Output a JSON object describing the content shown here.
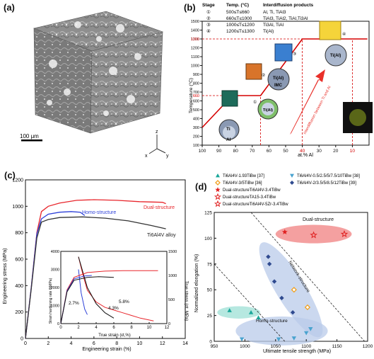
{
  "panel_a": {
    "label": "(a)",
    "scale_bar_text": "100 μm",
    "axis_letters": [
      "z",
      "x",
      "y"
    ]
  },
  "panel_b": {
    "label": "(b)",
    "table": {
      "headers": [
        "Stage",
        "Temp. (°C)",
        "Interdiffusion products"
      ],
      "rows": [
        {
          "stage": "①",
          "temp": "500≤T≤660",
          "products": "Al, Ti, TiAl3"
        },
        {
          "stage": "②",
          "temp": "660≤T≤1000",
          "products": "TiAl3, TiAl2, TiAl,Ti3Al"
        },
        {
          "stage": "③",
          "temp": "1000≤T≤1200",
          "products": "Ti3Al, TiAl"
        },
        {
          "stage": "④",
          "temp": "1200≤T≤1300",
          "products": "Ti(Al)"
        }
      ]
    },
    "annotations": {
      "ti": "Ti",
      "al": "Al",
      "ti_al": "Ti(Al)",
      "imc": "IMC",
      "arrow_text": "Interdiffusion between Ti and Al",
      "stage_marks": [
        "①",
        "②",
        "③",
        "④"
      ]
    },
    "highlight_color": "#d50000",
    "chart_data": {
      "type": "line",
      "xlabel": "at.% Al",
      "ylabel": "Temperature (°C)",
      "xlim": [
        100,
        0
      ],
      "ylim": [
        100,
        1500
      ],
      "x_ticks": [
        100,
        90,
        80,
        70,
        60,
        50,
        40,
        30,
        20,
        10
      ],
      "y_ticks": [
        100,
        200,
        300,
        400,
        500,
        600,
        700,
        800,
        900,
        1000,
        1100,
        1200,
        1300,
        1400,
        1500
      ],
      "highlight_ticks": {
        "x": [
          40,
          10
        ],
        "y": [
          660,
          1300
        ]
      },
      "series": [
        {
          "x": [
            100,
            82,
            65,
            40,
            10,
            1
          ],
          "y": [
            300,
            660,
            660,
            1300,
            1300,
            1300
          ]
        }
      ],
      "dashed_guides": [
        {
          "x": [
            100,
            65
          ],
          "y": [
            660,
            660
          ]
        },
        {
          "x": [
            100,
            10
          ],
          "y": [
            1300,
            1300
          ]
        },
        {
          "x": [
            65,
            65
          ],
          "y": [
            100,
            660
          ]
        },
        {
          "x": [
            40,
            40
          ],
          "y": [
            100,
            1300
          ]
        },
        {
          "x": [
            10,
            10
          ],
          "y": [
            100,
            1300
          ]
        }
      ]
    }
  },
  "panel_c": {
    "label": "(c)",
    "curve_labels": {
      "dual": "Dual-structure",
      "homo": "Homo-structure",
      "alloy": "Ti6Al4V alloy"
    },
    "chart_data": {
      "type": "line",
      "xlabel": "Engineering strain (%)",
      "ylabel": "Engineering stress (MPa)",
      "xlim": [
        0,
        14
      ],
      "ylim": [
        0,
        1200
      ],
      "x_ticks": [
        0,
        2,
        4,
        6,
        8,
        10,
        12,
        14
      ],
      "y_ticks": [
        0,
        200,
        400,
        600,
        800,
        1000,
        1200
      ],
      "series": [
        {
          "color": "#e8262c",
          "x": [
            0,
            0.5,
            1.0,
            1.4,
            2.0,
            3.0,
            4.5,
            6.0,
            8.0,
            10.0,
            12.0,
            12.3
          ],
          "y": [
            0,
            380,
            800,
            960,
            1000,
            1025,
            1045,
            1050,
            1045,
            1035,
            1030,
            1020
          ]
        },
        {
          "color": "#2c3fd8",
          "x": [
            0,
            0.5,
            1.0,
            1.4,
            2.0,
            3.0,
            4.0,
            4.8,
            5.2
          ],
          "y": [
            0,
            380,
            790,
            905,
            940,
            955,
            960,
            955,
            930
          ]
        },
        {
          "color": "#333333",
          "x": [
            0,
            0.5,
            1.0,
            1.4,
            2.0,
            3.0,
            5.0,
            7.0,
            9.0,
            11.0,
            12.3
          ],
          "y": [
            0,
            370,
            760,
            880,
            900,
            915,
            920,
            910,
            890,
            855,
            830
          ]
        }
      ],
      "inset": {
        "xlabel": "True strain (εt,%)",
        "ylabel_left": "Strain hardening rate θ(MPa)",
        "ylabel_right": "True stress (σt, MPa)",
        "xlim": [
          0,
          12
        ],
        "ylim_left": [
          0,
          4000
        ],
        "ylim_right": [
          0,
          1500
        ],
        "x_ticks": [
          0,
          2,
          4,
          6,
          8,
          10,
          12
        ],
        "y_ticks_left": [
          0,
          1000,
          2000,
          3000,
          4000
        ],
        "y_ticks_right": [
          0,
          500,
          1000,
          1500
        ],
        "annotations": [
          "2.7%",
          "4.3%",
          "5.8%"
        ],
        "hardening": [
          {
            "color": "#e8262c",
            "x": [
              2.0,
              2.5,
              3.0,
              4.0,
              5.0,
              6.0,
              7.0,
              8.0,
              9.0,
              10.5
            ],
            "y": [
              3700,
              2700,
              1850,
              1200,
              900,
              750,
              600,
              450,
              300,
              150
            ]
          },
          {
            "color": "#2c3fd8",
            "x": [
              2.0,
              2.3,
              2.7,
              3.0
            ],
            "y": [
              3000,
              1700,
              800,
              500
            ]
          },
          {
            "color": "#111111",
            "x": [
              2.0,
              3.0,
              4.0,
              5.0,
              6.0
            ],
            "y": [
              3700,
              2000,
              1100,
              600,
              300
            ]
          }
        ],
        "true_stress": [
          {
            "color": "#e8262c",
            "x": [
              0,
              0.7,
              1.5,
              3.0,
              5.0,
              7.0,
              9.0,
              11.0
            ],
            "y": [
              0,
              700,
              960,
              1060,
              1090,
              1100,
              1100,
              1100
            ]
          },
          {
            "color": "#2c3fd8",
            "x": [
              0,
              0.7,
              1.5,
              2.7,
              3.5
            ],
            "y": [
              0,
              680,
              930,
              990,
              1000
            ]
          },
          {
            "color": "#111111",
            "x": [
              0,
              0.7,
              1.5,
              3.0,
              4.3,
              6.0
            ],
            "y": [
              0,
              660,
              900,
              960,
              975,
              960
            ]
          }
        ]
      }
    }
  },
  "panel_d": {
    "label": "(d)",
    "region_labels": {
      "dual": "Dual-structure",
      "network": "Network-structure",
      "homo": "Homo-structure"
    },
    "chart_data": {
      "type": "scatter",
      "xlabel": "Ultimate tensile strength (MPa)",
      "ylabel": "Normalized elongation (%)",
      "xlim": [
        950,
        1200
      ],
      "ylim": [
        0,
        125
      ],
      "x_ticks": [
        950,
        1000,
        1050,
        1100,
        1150,
        1200
      ],
      "y_ticks": [
        0,
        25,
        50,
        75,
        100,
        125
      ],
      "legend_position": "top",
      "series": [
        {
          "name": "Ti6Al4V-1.93TiBw [37]",
          "color": "#1aa79a",
          "marker": "triangle-up",
          "x": [
            975,
            1010,
            1022
          ],
          "y": [
            30,
            28,
            23
          ]
        },
        {
          "name": "Ti6Al4V-0.5/2.5/5/7.5/10TiBw [38]",
          "color": "#4aa3cf",
          "marker": "triangle-down",
          "x": [
            995,
            1055,
            1080,
            1100,
            1107
          ],
          "y": [
            2,
            2,
            3,
            8,
            12
          ]
        },
        {
          "name": "Ti6Al4V-3/5TiBw [36]",
          "color": "#f0a020",
          "marker": "diamond-open",
          "x": [
            1080,
            1102
          ],
          "y": [
            50,
            33
          ]
        },
        {
          "name": "Ti6Al4V-2/3.5/5/8.5/12TiBw [39]",
          "color": "#2f4a8f",
          "marker": "diamond",
          "x": [
            1038,
            1040,
            1048,
            1060,
            1078
          ],
          "y": [
            82,
            75,
            58,
            42,
            28
          ]
        },
        {
          "name": "Dual-structureTi6Al4V-3.4TiBw",
          "color": "#e02020",
          "marker": "star",
          "x": [
            1065
          ],
          "y": [
            106
          ]
        },
        {
          "name": "Dual-structureTA15-3.4TiBw",
          "color": "#e02020",
          "marker": "star-open",
          "x": [
            1112
          ],
          "y": [
            103
          ]
        },
        {
          "name": "Dual-structureTi6Al4V-5Zr-3.4TiBw",
          "color": "#e02020",
          "marker": "star-open",
          "x": [
            1162
          ],
          "y": [
            104
          ]
        }
      ],
      "dashed_lines": [
        {
          "x": [
            950,
            1065
          ],
          "y": [
            75,
            0
          ]
        },
        {
          "x": [
            1010,
            1195
          ],
          "y": [
            125,
            0
          ]
        }
      ],
      "regions": [
        {
          "name": "Dual-structure",
          "color": "#f08080",
          "cx": 1112,
          "cy": 104,
          "rx": 62,
          "ry": 9
        },
        {
          "name": "Network-structure",
          "color": "#b9cbea",
          "cx": 1075,
          "cy": 50,
          "rx": 90,
          "ry": 14,
          "angle_deg": 58
        },
        {
          "name": "Homo-structure",
          "color": "#b9cbea",
          "cx": 1060,
          "cy": 10,
          "rx": 75,
          "ry": 14
        },
        {
          "name": "teal",
          "color": "#9ee0d6",
          "cx": 990,
          "cy": 28,
          "rx": 35,
          "ry": 6
        }
      ]
    }
  }
}
